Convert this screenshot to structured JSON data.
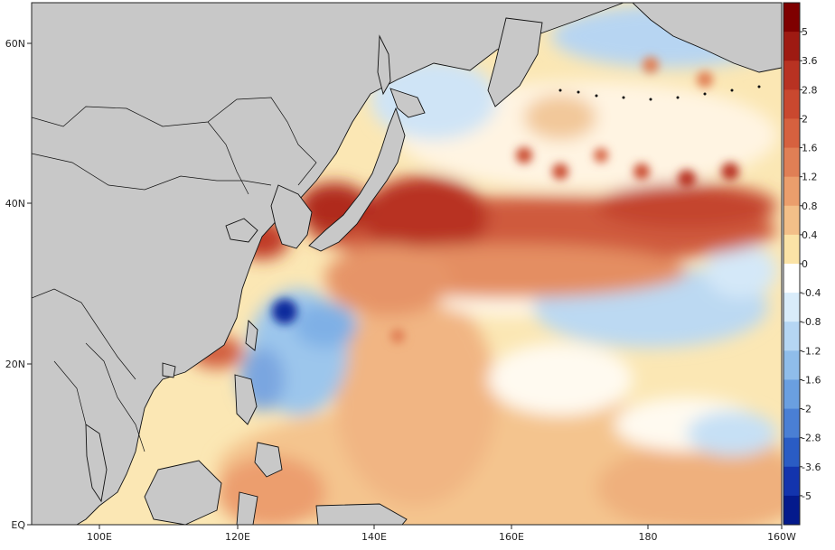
{
  "map": {
    "lat_ticks": [
      "60N",
      "40N",
      "20N",
      "EQ"
    ],
    "lon_ticks": [
      "100E",
      "120E",
      "140E",
      "160E",
      "180",
      "160W"
    ],
    "land_color": "#c8c8c8",
    "coastline_color": "#111111"
  },
  "colorbar": {
    "labels": [
      "5",
      "3.6",
      "2.8",
      "2",
      "1.6",
      "1.2",
      "0.8",
      "0.4",
      "0",
      "-0.4",
      "-0.8",
      "-1.2",
      "-1.6",
      "-2",
      "-2.8",
      "-3.6",
      "-5"
    ],
    "colors": [
      "#7f0000",
      "#9e1a12",
      "#b83222",
      "#c9482f",
      "#d6613f",
      "#e07f55",
      "#eb9e6c",
      "#f3bf88",
      "#fbe3a6",
      "#ffffff",
      "#d9ecfa",
      "#b5d6f3",
      "#8fbdea",
      "#6a9fe0",
      "#4a7fd4",
      "#2a5cc4",
      "#1334ad",
      "#041a8c"
    ]
  }
}
